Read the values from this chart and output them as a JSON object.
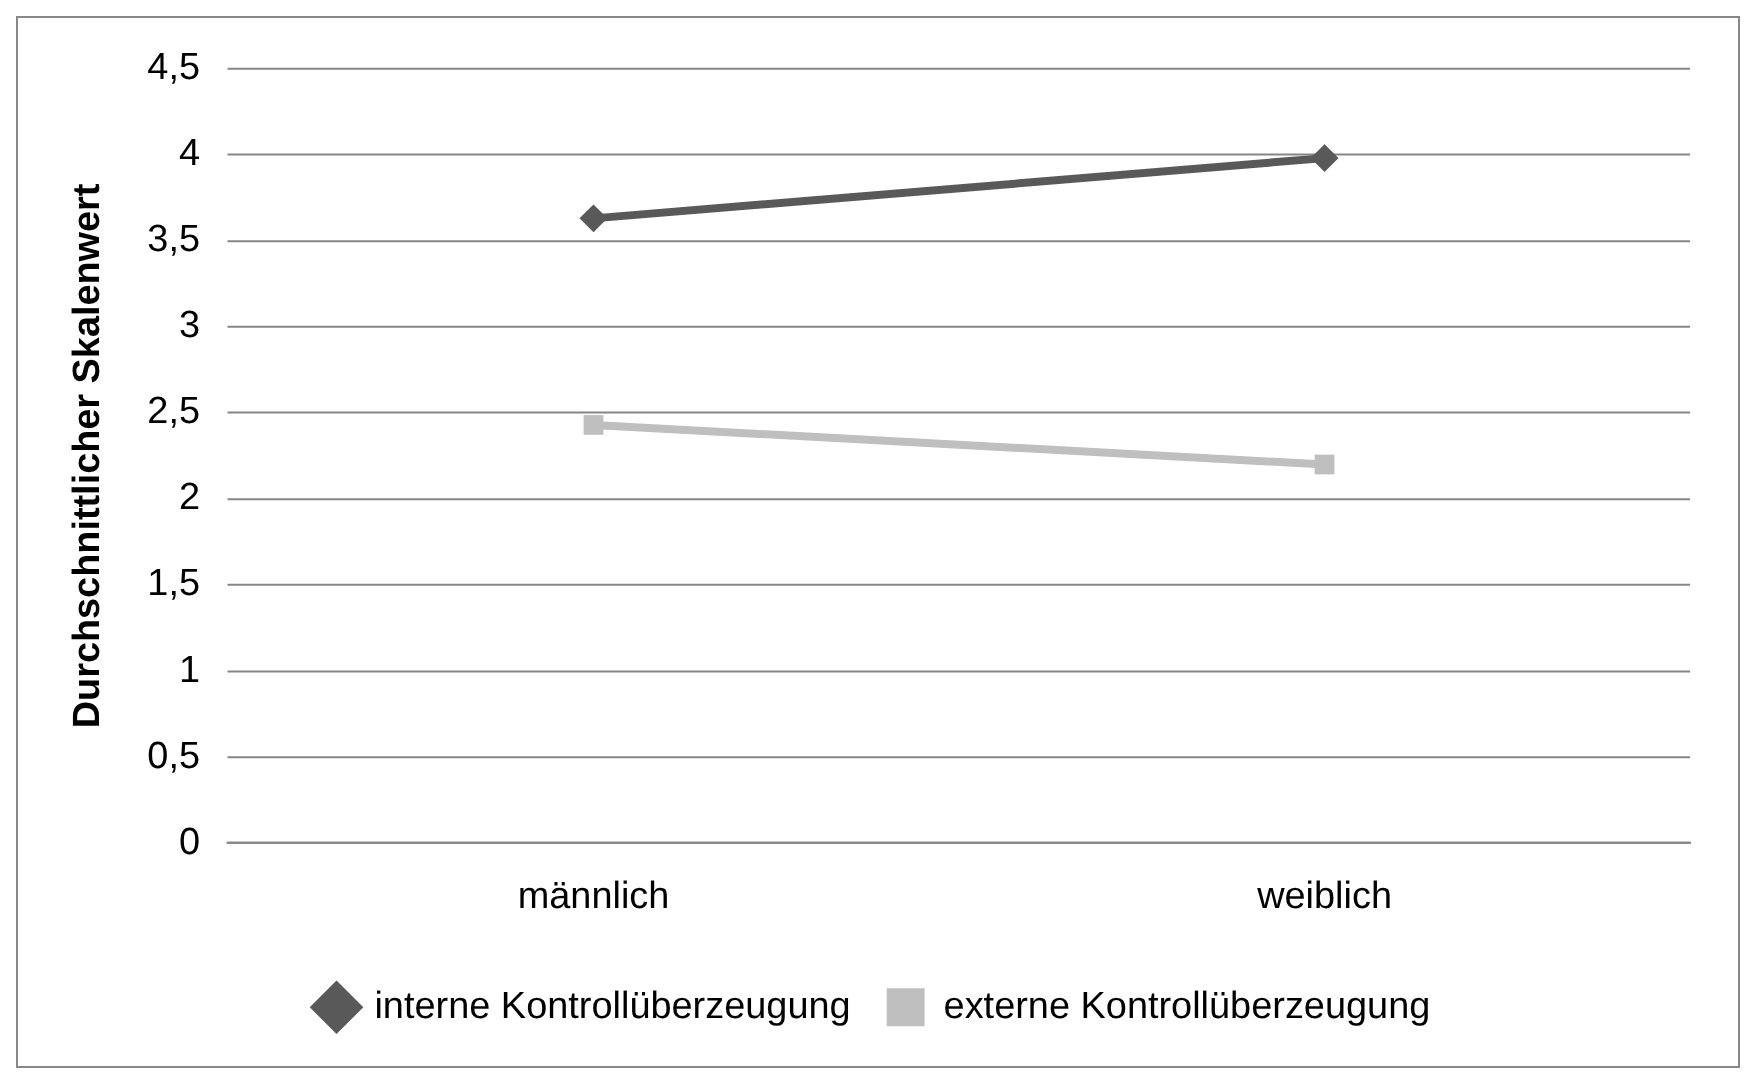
{
  "chart_data": {
    "type": "line",
    "ylabel": "Durchschnittlicher Skalenwert",
    "categories": [
      "männlich",
      "weiblich"
    ],
    "series": [
      {
        "name": "interne Kontrollüberzeugung",
        "color": "#595959",
        "values": [
          3.63,
          3.98
        ],
        "marker": "diamond"
      },
      {
        "name": "externe Kontrollüberzeugung",
        "color": "#bfbfbf",
        "values": [
          2.43,
          2.2
        ],
        "marker": "square"
      }
    ],
    "ylim": [
      0,
      4.5
    ],
    "yticks": [
      0,
      {
        "value": 0.5,
        "label": "0,5"
      },
      1,
      {
        "value": 1.5,
        "label": "1,5"
      },
      2,
      {
        "value": 2.5,
        "label": "2,5"
      },
      3,
      {
        "value": 3.5,
        "label": "3,5"
      },
      4,
      {
        "value": 4.5,
        "label": "4,5"
      }
    ],
    "grid": "y",
    "legend": "bottom",
    "line_style": "solid"
  }
}
